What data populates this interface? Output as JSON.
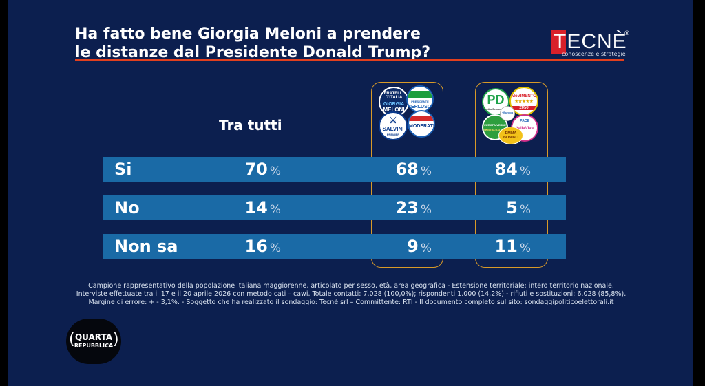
{
  "title_line1": "Ha fatto bene Giorgia Meloni a prendere",
  "title_line2": "le distanze dal Presidente Donald Trump?",
  "brand": {
    "name": "TECNÈ",
    "registered": "®",
    "tagline": "conoscenze e strategie"
  },
  "group_label": "Tra tutti",
  "centrodestra_logos": {
    "fdi_line1": "FRATELLI",
    "fdi_line2": "D'ITALIA",
    "fdi_name1": "GIORGIA",
    "fdi_name2": "MELONI",
    "fi_text": "BERLUSCONI",
    "fi_president": "PRESIDENTE",
    "lega_text": "SALVINI",
    "lega_sub": "PREMIER",
    "nm_text": "MODERATI"
  },
  "centrosinistra_logos": {
    "pd_text": "PD",
    "pd_sub": "Partito Democratico",
    "m5s_text": "MoVIMENTO",
    "m5s_year": "2050",
    "avs_text": "EUROPA VERDE",
    "spd_text": "SINISTRA ITALIANA",
    "piu_text": "+Europa",
    "pace_text": "PACE",
    "iv_text": "ItaliaViva",
    "eb_text": "EMMA BONINO"
  },
  "rows": [
    {
      "label": "Si",
      "tutti": "70",
      "cdx": "68",
      "csx": "84",
      "unit": "%"
    },
    {
      "label": "No",
      "tutti": "14",
      "cdx": "23",
      "csx": "5",
      "unit": "%"
    },
    {
      "label": "Non sa",
      "tutti": "16",
      "cdx": "9",
      "csx": "11",
      "unit": "%"
    }
  ],
  "footnote_line1": "Campione rappresentativo della popolazione italiana maggiorenne, articolato per sesso, età, area geografica - Estensione territoriale: intero territorio nazionale.",
  "footnote_line2": "Interviste effettuate tra il 17 e il 20 aprile 2026 con metodo cati – cawi. Totale contatti: 7.028 (100,0%); rispondenti 1.000 (14,2%) - rifiuti e sostituzioni: 6.028 (85,8%).",
  "footnote_line3": "Margine di errore: + - 3,1%.  - Soggetto che ha realizzato il sondaggio: Tecnè srl – Committente: RTI - Il documento completo sul sito: sondaggipoliticoelettorali.it",
  "show_logo": {
    "line1": "QUARTA",
    "line2": "REPUBBLICA"
  },
  "colors": {
    "background": "#0c1f4f",
    "row_bar": "#1a6aa6",
    "accent_rule": "#e2401e",
    "column_frame": "#d89a28",
    "brand_red": "#d8202a"
  }
}
